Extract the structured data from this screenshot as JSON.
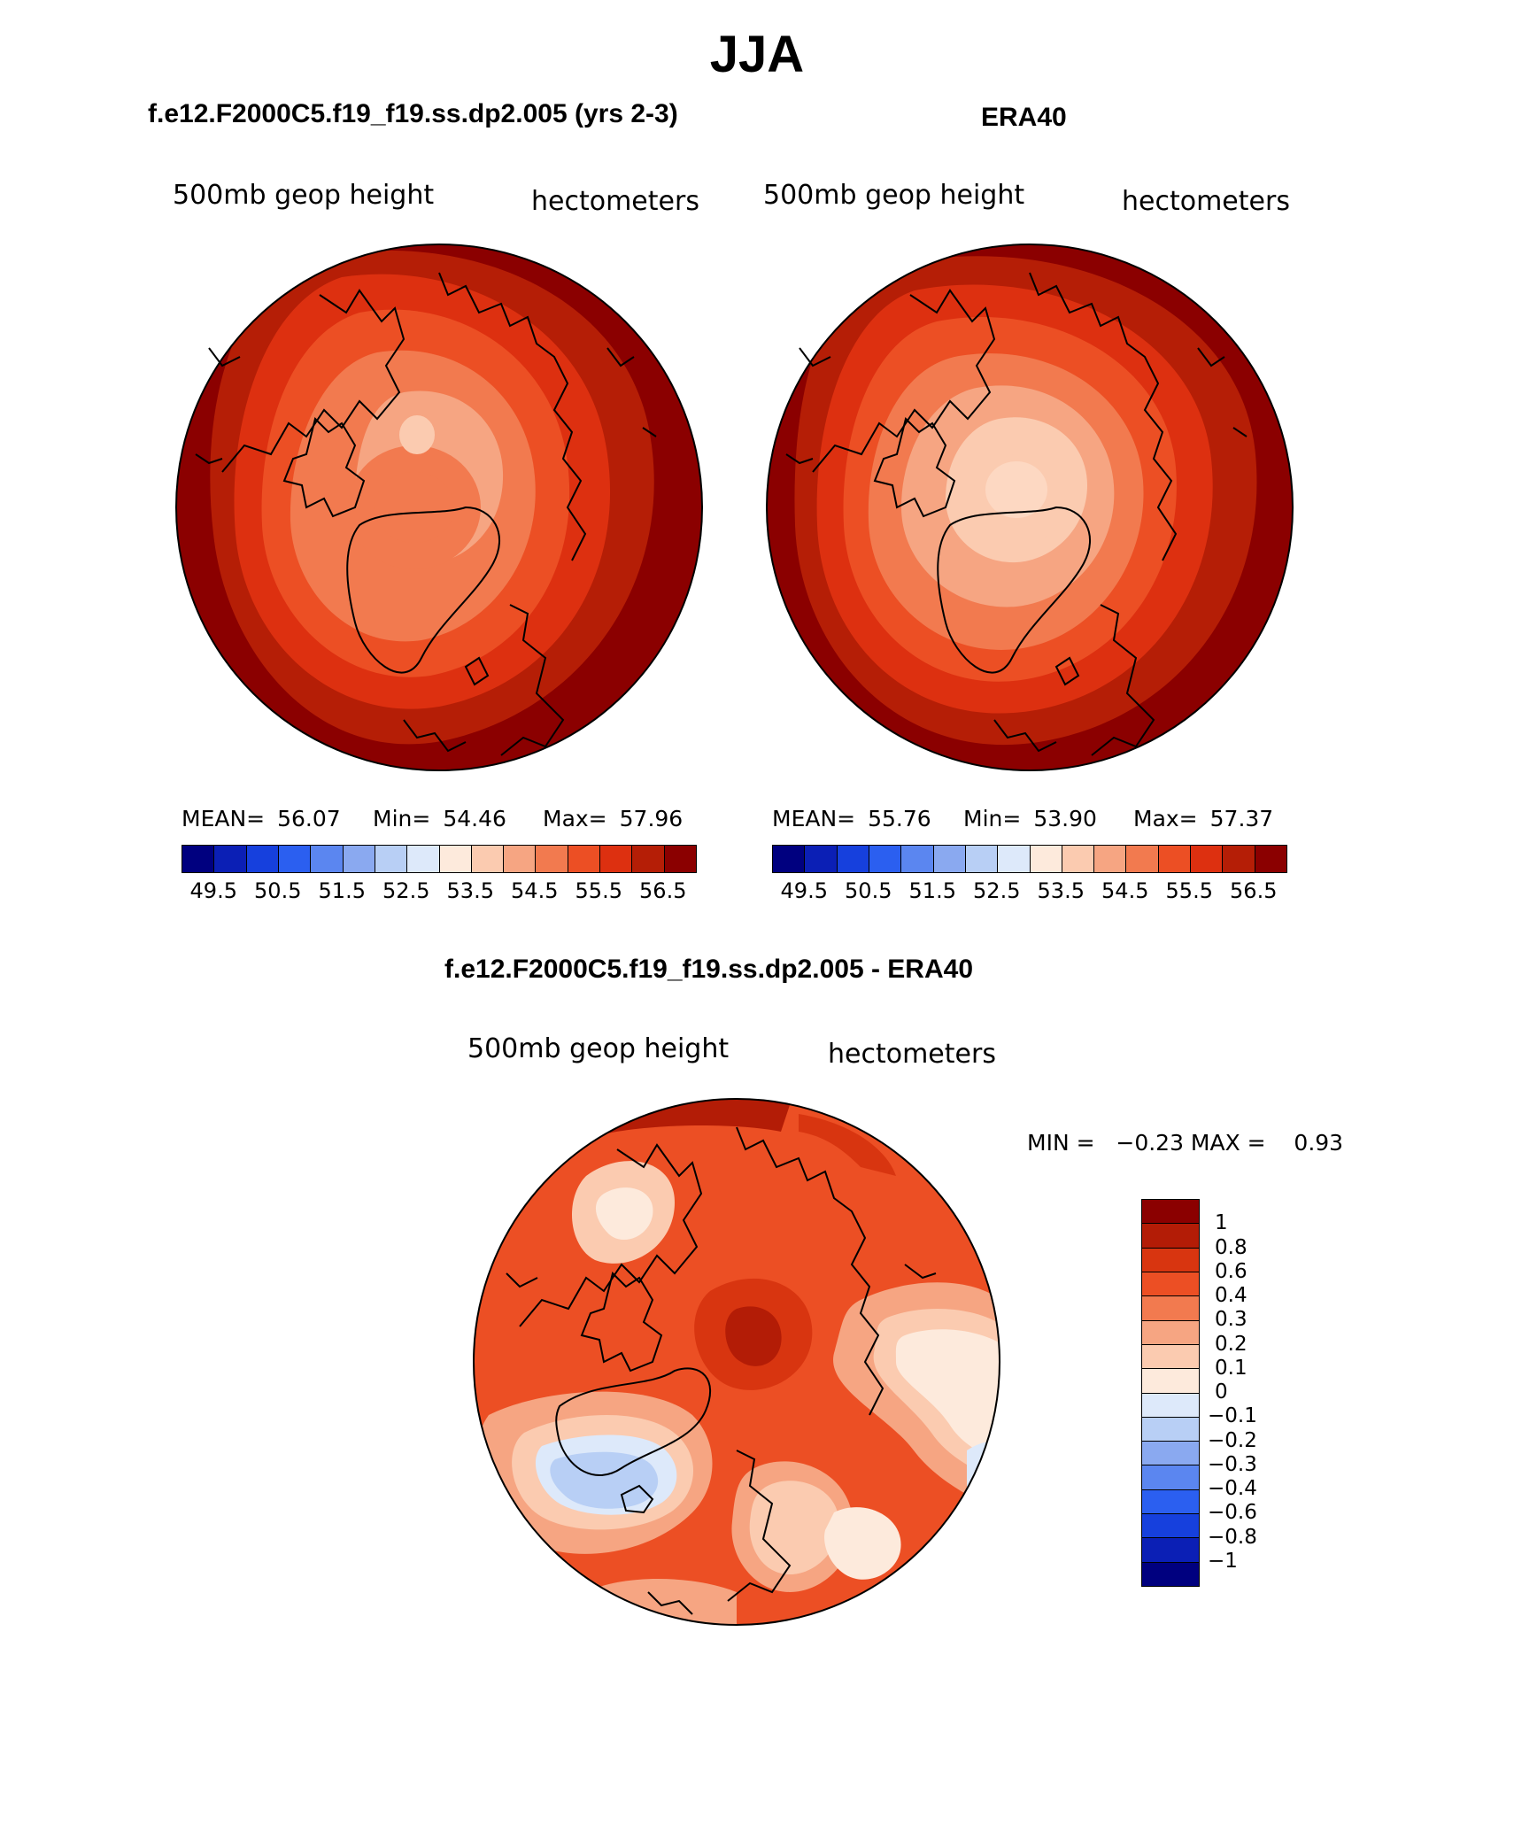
{
  "figure": {
    "title": "JJA",
    "colors": {
      "colorbar_levels": [
        "#00007f",
        "#0b1fb5",
        "#1640dd",
        "#2b5ff0",
        "#5b86f0",
        "#8aa9f0",
        "#b8cff5",
        "#dde9fa",
        "#fdeadc",
        "#fbcbb0",
        "#f6a582",
        "#f27a4f",
        "#ec4f24",
        "#dd3010",
        "#b51e06",
        "#8b0000"
      ],
      "diff_levels": [
        "#8b0000",
        "#b31c06",
        "#d83510",
        "#ec4f24",
        "#f27a4f",
        "#f6a582",
        "#fbcbb0",
        "#fdeadc",
        "#dde9fa",
        "#b8cff5",
        "#8aa9f0",
        "#5b86f0",
        "#2b5ff0",
        "#1640dd",
        "#0b1fb5",
        "#00007f"
      ]
    }
  },
  "panels": [
    {
      "title": "f.e12.F2000C5.f19_f19.ss.dp2.005 (yrs 2-3)",
      "field": "500mb geop height",
      "units": "hectometers",
      "stats": {
        "mean_label": "MEAN=",
        "mean": "56.07",
        "min_label": "Min=",
        "min": "54.46",
        "max_label": "Max=",
        "max": "57.96"
      },
      "colorbar_ticks": [
        "49.5",
        "50.5",
        "51.5",
        "52.5",
        "53.5",
        "54.5",
        "55.5",
        "56.5"
      ]
    },
    {
      "title": "ERA40",
      "field": "500mb geop height",
      "units": "hectometers",
      "stats": {
        "mean_label": "MEAN=",
        "mean": "55.76",
        "min_label": "Min=",
        "min": "53.90",
        "max_label": "Max=",
        "max": "57.37"
      },
      "colorbar_ticks": [
        "49.5",
        "50.5",
        "51.5",
        "52.5",
        "53.5",
        "54.5",
        "55.5",
        "56.5"
      ]
    }
  ],
  "difference": {
    "title": "f.e12.F2000C5.f19_f19.ss.dp2.005 - ERA40",
    "field": "500mb geop height",
    "units": "hectometers",
    "minmax": "MIN =   −0.23 MAX =    0.93",
    "colorbar_labels": [
      "1",
      "0.8",
      "0.6",
      "0.4",
      "0.3",
      "0.2",
      "0.1",
      "0",
      "−0.1",
      "−0.2",
      "−0.3",
      "−0.4",
      "−0.6",
      "−0.8",
      "−1"
    ]
  },
  "chart_data": [
    {
      "type": "heatmap",
      "title": "f.e12.F2000C5.f19_f19.ss.dp2.005 (yrs 2-3)",
      "projection": "north polar stereographic",
      "variable": "500mb geop height",
      "units": "hectometers",
      "mean": 56.07,
      "min": 54.46,
      "max": 57.96,
      "contour_levels": [
        49.5,
        50,
        50.5,
        51,
        51.5,
        52,
        52.5,
        53,
        53.5,
        54,
        54.5,
        55,
        55.5,
        56,
        56.5
      ]
    },
    {
      "type": "heatmap",
      "title": "ERA40",
      "projection": "north polar stereographic",
      "variable": "500mb geop height",
      "units": "hectometers",
      "mean": 55.76,
      "min": 53.9,
      "max": 57.37,
      "contour_levels": [
        49.5,
        50,
        50.5,
        51,
        51.5,
        52,
        52.5,
        53,
        53.5,
        54,
        54.5,
        55,
        55.5,
        56,
        56.5
      ]
    },
    {
      "type": "heatmap",
      "title": "f.e12.F2000C5.f19_f19.ss.dp2.005 - ERA40",
      "projection": "north polar stereographic",
      "variable": "500mb geop height",
      "units": "hectometers",
      "min": -0.23,
      "max": 0.93,
      "contour_levels": [
        -1,
        -0.8,
        -0.6,
        -0.4,
        -0.3,
        -0.2,
        -0.1,
        0,
        0.1,
        0.2,
        0.3,
        0.4,
        0.6,
        0.8,
        1
      ]
    }
  ]
}
